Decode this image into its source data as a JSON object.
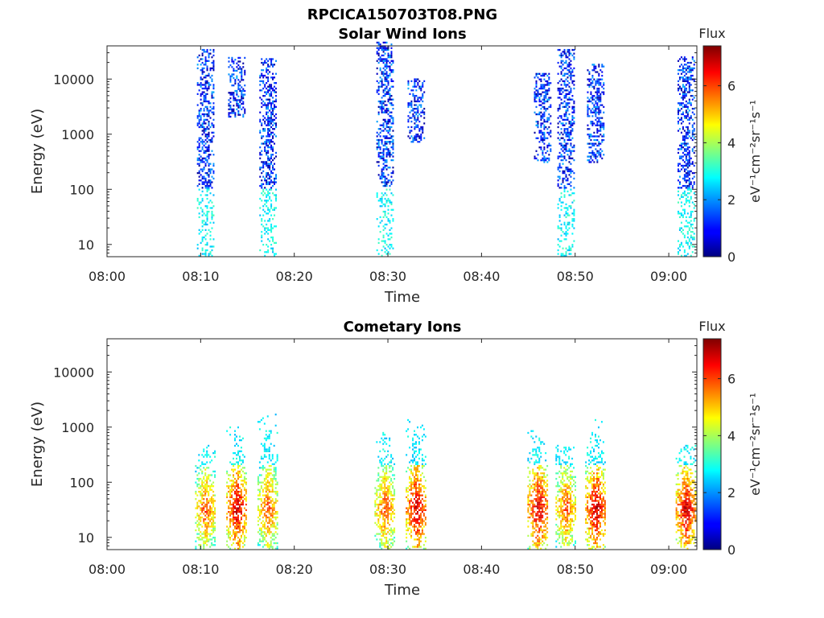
{
  "figure_title": "RPCICA150703T08.PNG",
  "colorbar": {
    "title": "Flux",
    "label": "eV⁻¹cm⁻²sr⁻¹s⁻¹",
    "range": [
      0,
      7.4
    ],
    "ticks": [
      "0",
      "2",
      "4",
      "6"
    ],
    "colormap": "jet"
  },
  "chart_data": [
    {
      "type": "heatmap",
      "title": "Solar Wind Ions",
      "xlabel": "Time",
      "ylabel": "Energy (eV)",
      "x_ticks": [
        "08:00",
        "08:10",
        "08:20",
        "08:30",
        "08:40",
        "08:50",
        "09:00"
      ],
      "y_ticks": [
        "10",
        "100",
        "1000",
        "10000"
      ],
      "y_scale": "log",
      "xlim": [
        "08:00",
        "09:03"
      ],
      "ylim": [
        6,
        40000
      ],
      "clim": [
        0,
        7.4
      ],
      "bursts": [
        {
          "time": "08:10:30",
          "flux_level": "low",
          "energy_range_eV": [
            6,
            33000
          ]
        },
        {
          "time": "08:13:50",
          "flux_level": "low",
          "energy_range_eV": [
            2000,
            25000
          ]
        },
        {
          "time": "08:17:10",
          "flux_level": "low",
          "energy_range_eV": [
            6,
            23000
          ]
        },
        {
          "time": "08:29:40",
          "flux_level": "low",
          "energy_range_eV": [
            6,
            45000
          ]
        },
        {
          "time": "08:33:00",
          "flux_level": "low",
          "energy_range_eV": [
            700,
            10000
          ]
        },
        {
          "time": "08:46:30",
          "flux_level": "low",
          "energy_range_eV": [
            300,
            12000
          ]
        },
        {
          "time": "08:49:00",
          "flux_level": "low",
          "energy_range_eV": [
            6,
            35000
          ]
        },
        {
          "time": "08:52:10",
          "flux_level": "low",
          "energy_range_eV": [
            300,
            20000
          ]
        },
        {
          "time": "09:01:50",
          "flux_level": "low",
          "energy_range_eV": [
            6,
            25000
          ]
        }
      ]
    },
    {
      "type": "heatmap",
      "title": "Cometary Ions",
      "xlabel": "Time",
      "ylabel": "Energy (eV)",
      "x_ticks": [
        "08:00",
        "08:10",
        "08:20",
        "08:30",
        "08:40",
        "08:50",
        "09:00"
      ],
      "y_ticks": [
        "10",
        "100",
        "1000",
        "10000"
      ],
      "y_scale": "log",
      "xlim": [
        "08:00",
        "09:03"
      ],
      "ylim": [
        6,
        40000
      ],
      "clim": [
        0,
        7.4
      ],
      "bursts": [
        {
          "time": "08:10:30",
          "flux_level": "high",
          "energy_range_eV": [
            6,
            450
          ]
        },
        {
          "time": "08:13:50",
          "flux_level": "very high",
          "energy_range_eV": [
            6,
            1000
          ]
        },
        {
          "time": "08:17:10",
          "flux_level": "high",
          "energy_range_eV": [
            6,
            1700
          ]
        },
        {
          "time": "08:29:40",
          "flux_level": "high",
          "energy_range_eV": [
            6,
            800
          ]
        },
        {
          "time": "08:33:00",
          "flux_level": "very high",
          "energy_range_eV": [
            6,
            1300
          ]
        },
        {
          "time": "08:46:00",
          "flux_level": "very high",
          "energy_range_eV": [
            6,
            1300
          ]
        },
        {
          "time": "08:49:00",
          "flux_level": "high",
          "energy_range_eV": [
            6,
            450
          ]
        },
        {
          "time": "08:52:10",
          "flux_level": "very high",
          "energy_range_eV": [
            6,
            1400
          ]
        },
        {
          "time": "09:01:50",
          "flux_level": "very high",
          "energy_range_eV": [
            6,
            450
          ]
        }
      ]
    }
  ]
}
